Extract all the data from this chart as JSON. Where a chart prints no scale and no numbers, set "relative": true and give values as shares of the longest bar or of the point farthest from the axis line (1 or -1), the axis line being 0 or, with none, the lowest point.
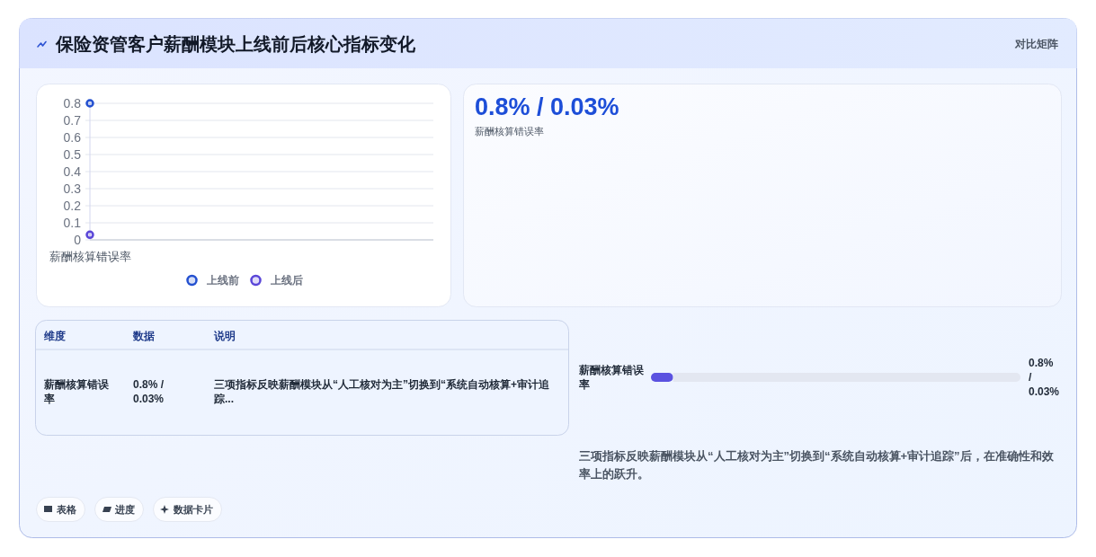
{
  "chart_data": [
    {
      "type": "other",
      "title": "保险资管客户薪酬模块上线前后核心指标变化",
      "subtitle": "对比矩阵"
    },
    {
      "type": "line",
      "categories": [
        "薪酬核算错误率"
      ],
      "series": [
        {
          "name": "上线前",
          "color": "#2350d0",
          "values": [
            0.8
          ]
        },
        {
          "name": "上线后",
          "color": "#5a46d8",
          "values": [
            0.03
          ]
        }
      ],
      "ylim": [
        0,
        0.8
      ],
      "yticks": [
        0,
        0.1,
        0.2,
        0.3,
        0.4,
        0.5,
        0.6,
        0.7,
        0.8
      ],
      "grid": "y",
      "legend": "bottom",
      "marker": "circle"
    },
    {
      "type": "other",
      "title": "0.8% / 0.03%",
      "subtitle": "薪酬核算错误率"
    },
    {
      "type": "other",
      "annotations": [
        "维度",
        "数据",
        "说明",
        "薪酬核算错误率",
        "0.8% / 0.03%",
        "三项指标反映薪酬模块从“人工核对为主”切换到“系统自动核算+审计追踪..."
      ]
    },
    {
      "type": "bar",
      "orientation": "horizontal",
      "stacked": true,
      "relative": true,
      "categories": [
        "薪酬核算错误率"
      ],
      "series": [
        {
          "color": "#5b52e0",
          "values": [
            0.06
          ]
        },
        {
          "color": "#e3e7f1",
          "values": [
            0.94
          ]
        }
      ],
      "annotations": [
        "0.8% / 0.03%",
        "三项指标反映薪酬模块从“人工核对为主”切换到“系统自动核算+审计追踪”后，在准确性和效率上的跃升。"
      ]
    },
    {
      "type": "other",
      "annotations": [
        "表格",
        "进度",
        "数据卡片"
      ]
    }
  ]
}
